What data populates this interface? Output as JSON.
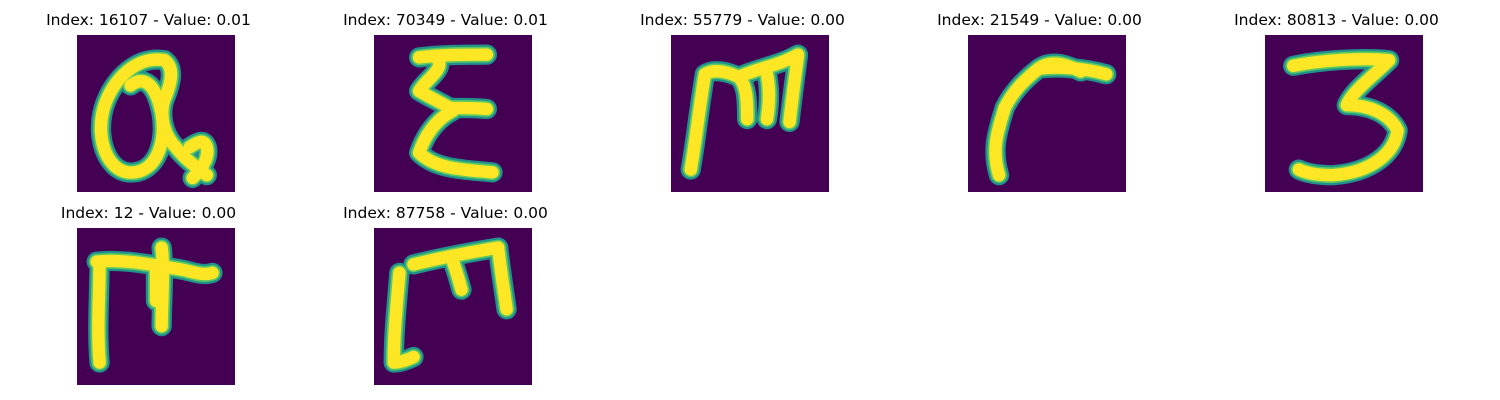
{
  "figure": {
    "colors": {
      "background": "#440154",
      "stroke_edge": "#21918c",
      "stroke_mid": "#5ec962",
      "stroke_core": "#fde725"
    },
    "samples": [
      {
        "title": "Index: 16107 - Value: 0.01",
        "glyph": "handwritten-Q"
      },
      {
        "title": "Index: 70349 - Value: 0.01",
        "glyph": "handwritten-E"
      },
      {
        "title": "Index: 55779 - Value: 0.00",
        "glyph": "handwritten-m"
      },
      {
        "title": "Index: 21549 - Value: 0.00",
        "glyph": "handwritten-r"
      },
      {
        "title": "Index: 80813 - Value: 0.00",
        "glyph": "handwritten-3"
      },
      {
        "title": "Index: 12 - Value: 0.00",
        "glyph": "handwritten-m"
      },
      {
        "title": "Index: 87758 - Value: 0.00",
        "glyph": "handwritten-m"
      }
    ]
  }
}
